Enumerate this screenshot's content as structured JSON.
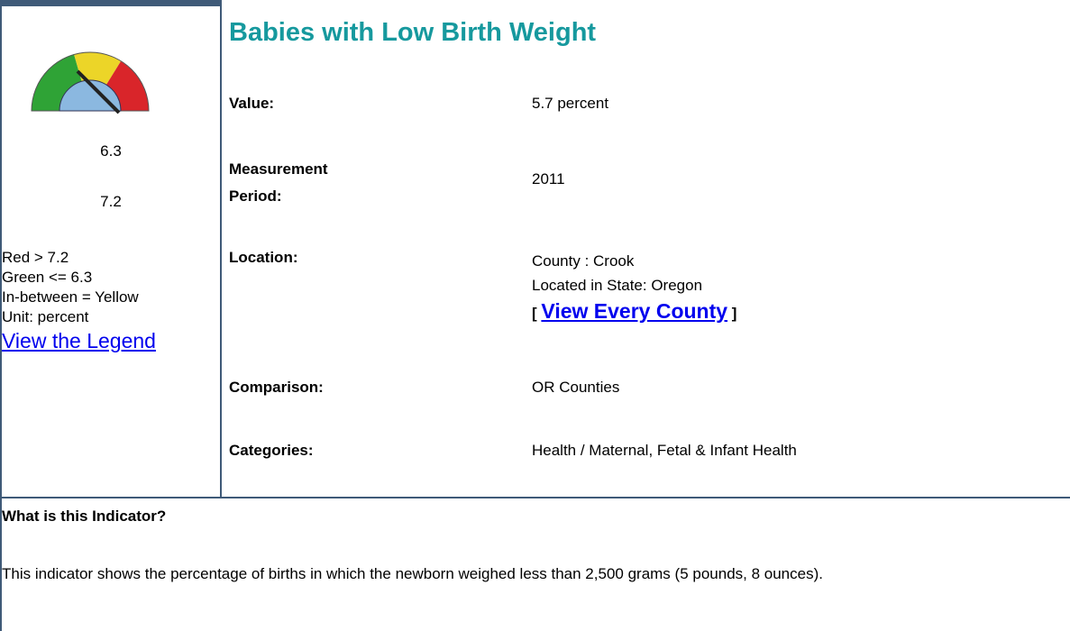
{
  "title": "Babies with Low Birth Weight",
  "gauge": {
    "green_threshold": "6.3",
    "red_threshold": "7.2"
  },
  "legend": {
    "lines": [
      "Red > 7.2",
      "Green <= 6.3",
      "In-between = Yellow",
      "Unit: percent"
    ],
    "link": "View the Legend"
  },
  "fields": {
    "value": {
      "label": "Value:",
      "text": "5.7 percent"
    },
    "period": {
      "label_lines": [
        "Measurement",
        "Period:"
      ],
      "text": "2011"
    },
    "location": {
      "label": "Location:",
      "lines": [
        "County : Crook",
        "Located in State: Oregon"
      ],
      "link_open": "[",
      "link": "View Every County",
      "link_close": "]"
    },
    "comparison": {
      "label": "Comparison:",
      "text": "OR Counties"
    },
    "categories": {
      "label": "Categories:",
      "text": "Health / Maternal, Fetal & Infant Health"
    }
  },
  "indicator": {
    "heading": "What is this Indicator?",
    "description": "This indicator shows the percentage of births in which the newborn weighed less than 2,500 grams (5 pounds, 8 ounces)."
  }
}
